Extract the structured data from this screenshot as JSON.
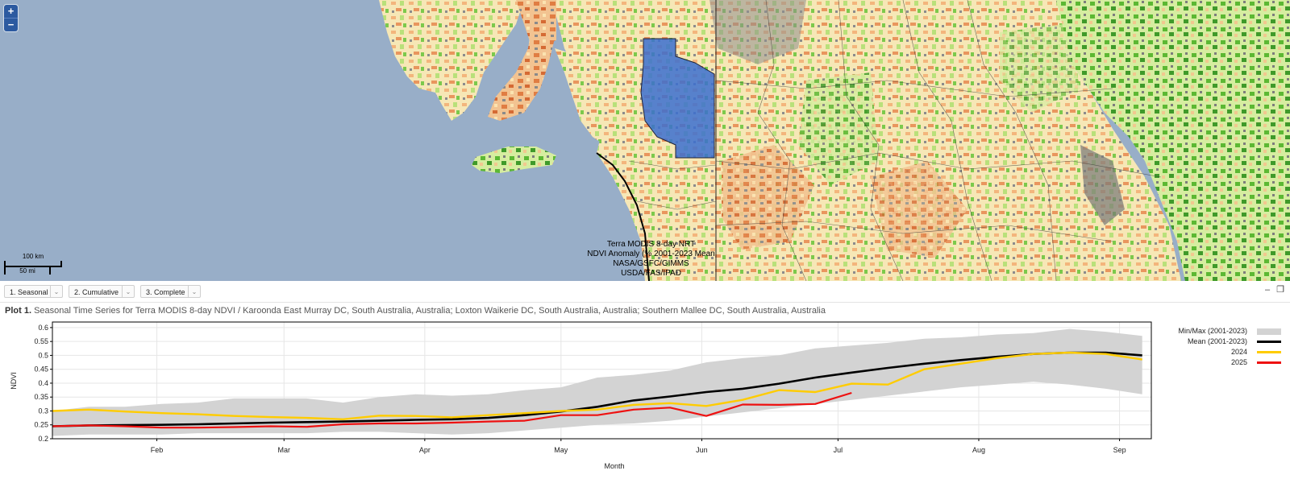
{
  "map": {
    "zoom_in": "+",
    "zoom_out": "−",
    "scale": {
      "km": "100 km",
      "mi": "50 mi"
    },
    "credits": [
      "Terra MODIS 8-day NRT",
      "NDVI Anomaly (% 2001-2023 Mean",
      "NASA/GSFC/GIMMS",
      "USDA/FAS/IPAD"
    ]
  },
  "toolbar": {
    "tabs": [
      {
        "label": "1. Seasonal"
      },
      {
        "label": "2. Cumulative"
      },
      {
        "label": "3. Complete"
      }
    ],
    "minimize": "–",
    "restore": "❐"
  },
  "plot": {
    "title_prefix": "Plot 1.",
    "title": "Seasonal Time Series for Terra MODIS 8-day NDVI / Karoonda East Murray DC, South Australia, Australia; Loxton Waikerie DC, South Australia, Australia; Southern Mallee DC, South Australia, Australia"
  },
  "chart_data": {
    "type": "line",
    "xlabel": "Month",
    "ylabel": "NDVI",
    "xlim": [
      9.0,
      251.0
    ],
    "ylim": [
      0.2,
      0.62
    ],
    "month_ticks": [
      {
        "label": "Feb",
        "day": 32
      },
      {
        "label": "Mar",
        "day": 60
      },
      {
        "label": "Apr",
        "day": 91
      },
      {
        "label": "May",
        "day": 121
      },
      {
        "label": "Jun",
        "day": 152
      },
      {
        "label": "Jul",
        "day": 182
      },
      {
        "label": "Aug",
        "day": 213
      },
      {
        "label": "Sep",
        "day": 244
      }
    ],
    "y_ticks": [
      0.2,
      0.25,
      0.3,
      0.35,
      0.4,
      0.45,
      0.5,
      0.55,
      0.6
    ],
    "grid": true,
    "legend_position": "right",
    "colors": {
      "band": "#d3d3d3",
      "mean": "#000000",
      "y2024": "#ffcc00",
      "y2025": "#ee1111"
    },
    "x": [
      9,
      17,
      25,
      33,
      41,
      49,
      57,
      65,
      73,
      81,
      89,
      97,
      105,
      113,
      121,
      129,
      137,
      145,
      153,
      161,
      169,
      177,
      185,
      193,
      201,
      209,
      217,
      225,
      233,
      241,
      249
    ],
    "series": [
      {
        "name": "Min/Max (2001-2023)",
        "kind": "band",
        "min": [
          0.21,
          0.215,
          0.215,
          0.215,
          0.22,
          0.22,
          0.22,
          0.22,
          0.225,
          0.225,
          0.22,
          0.215,
          0.22,
          0.23,
          0.24,
          0.25,
          0.255,
          0.265,
          0.28,
          0.295,
          0.31,
          0.325,
          0.34,
          0.355,
          0.37,
          0.385,
          0.395,
          0.405,
          0.395,
          0.38,
          0.36
        ],
        "max": [
          0.3,
          0.315,
          0.315,
          0.325,
          0.33,
          0.345,
          0.345,
          0.345,
          0.33,
          0.35,
          0.36,
          0.355,
          0.36,
          0.375,
          0.385,
          0.42,
          0.43,
          0.445,
          0.475,
          0.49,
          0.5,
          0.525,
          0.535,
          0.545,
          0.56,
          0.565,
          0.575,
          0.58,
          0.595,
          0.585,
          0.57
        ]
      },
      {
        "name": "Mean (2001-2023)",
        "kind": "line",
        "values": [
          0.245,
          0.248,
          0.249,
          0.25,
          0.252,
          0.255,
          0.258,
          0.26,
          0.262,
          0.265,
          0.268,
          0.27,
          0.275,
          0.285,
          0.298,
          0.315,
          0.338,
          0.352,
          0.368,
          0.38,
          0.398,
          0.42,
          0.438,
          0.455,
          0.47,
          0.483,
          0.495,
          0.505,
          0.51,
          0.51,
          0.5
        ]
      },
      {
        "name": "2024",
        "kind": "line",
        "values": [
          0.3,
          0.305,
          0.298,
          0.292,
          0.288,
          0.282,
          0.278,
          0.275,
          0.27,
          0.283,
          0.282,
          0.277,
          0.285,
          0.292,
          0.3,
          0.305,
          0.322,
          0.328,
          0.318,
          0.34,
          0.375,
          0.368,
          0.398,
          0.395,
          0.45,
          0.47,
          0.49,
          0.505,
          0.51,
          0.505,
          0.485
        ]
      },
      {
        "name": "2025",
        "kind": "line",
        "values": [
          0.245,
          0.248,
          0.245,
          0.24,
          0.24,
          0.242,
          0.245,
          0.243,
          0.252,
          0.255,
          0.255,
          0.258,
          0.262,
          0.265,
          0.285,
          0.285,
          0.305,
          0.312,
          0.282,
          0.323,
          0.322,
          0.325,
          0.365,
          null,
          null,
          null,
          null,
          null,
          null,
          null,
          null
        ]
      }
    ]
  }
}
